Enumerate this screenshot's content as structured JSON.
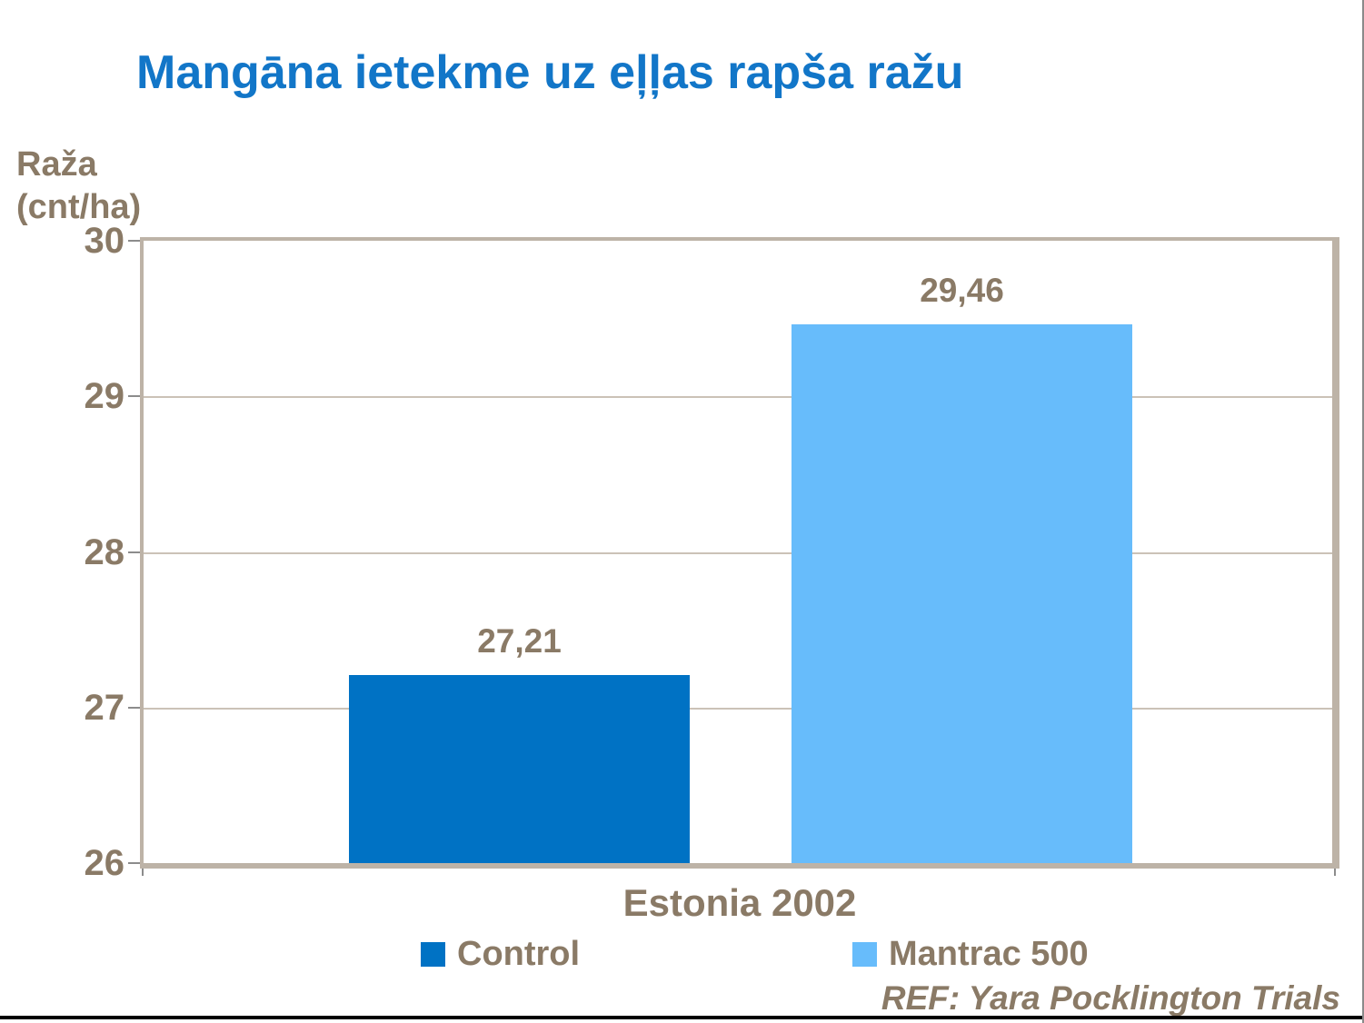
{
  "title": "Mangāna ietekme uz eļļas rapša ražu",
  "y_axis": {
    "label_line1": "Raža",
    "label_line2": "(cnt/ha)",
    "ticks": [
      "30",
      "29",
      "28",
      "27",
      "26"
    ]
  },
  "x_axis": {
    "category": "Estonia 2002"
  },
  "legend": {
    "items": [
      {
        "label": "Control",
        "color": "#0072C4"
      },
      {
        "label": "Mantrac 500",
        "color": "#67BCFB"
      }
    ]
  },
  "footer": "REF: Yara Pocklington Trials",
  "colors": {
    "title_blue": "#1276C8",
    "text_brown": "#8A7A66",
    "control_bar": "#0072C4",
    "mantrac_bar": "#67BCFB",
    "plot_frame": "#BDB3A7",
    "gridline": "#CBC2B7"
  },
  "chart_data": {
    "type": "bar",
    "categories": [
      "Estonia 2002"
    ],
    "series": [
      {
        "name": "Control",
        "values": [
          27.21
        ],
        "value_label": "27,21",
        "color": "#0072C4"
      },
      {
        "name": "Mantrac 500",
        "values": [
          29.46
        ],
        "value_label": "29,46",
        "color": "#67BCFB"
      }
    ],
    "title": "Mangāna ietekme uz eļļas rapša ražu",
    "xlabel": "",
    "ylabel": "Raža (cnt/ha)",
    "ylim": [
      26,
      30
    ],
    "yticks": [
      26,
      27,
      28,
      29,
      30
    ],
    "grid": true,
    "legend_position": "bottom",
    "annotation": "REF: Yara Pocklington Trials"
  }
}
